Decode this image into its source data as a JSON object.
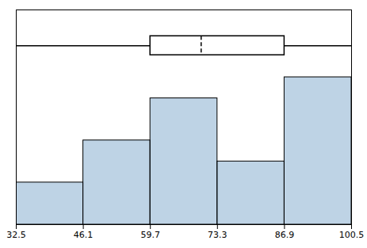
{
  "chart_data": {
    "type": "histogram",
    "bins": [
      32.5,
      46.1,
      59.7,
      73.3,
      86.9,
      100.5
    ],
    "values": [
      2,
      4,
      6,
      3,
      7
    ],
    "box": {
      "whisker_low": 32.5,
      "q1": 59.7,
      "median": 70.0,
      "q3": 86.9,
      "whisker_high": 100.5,
      "y": 8.5
    },
    "xlim": [
      32.5,
      100.5
    ],
    "xticks": [
      32.5,
      46.1,
      59.7,
      73.3,
      86.9,
      100.5
    ],
    "ylim": [
      0,
      10.2
    ],
    "tick_labels": "x"
  }
}
